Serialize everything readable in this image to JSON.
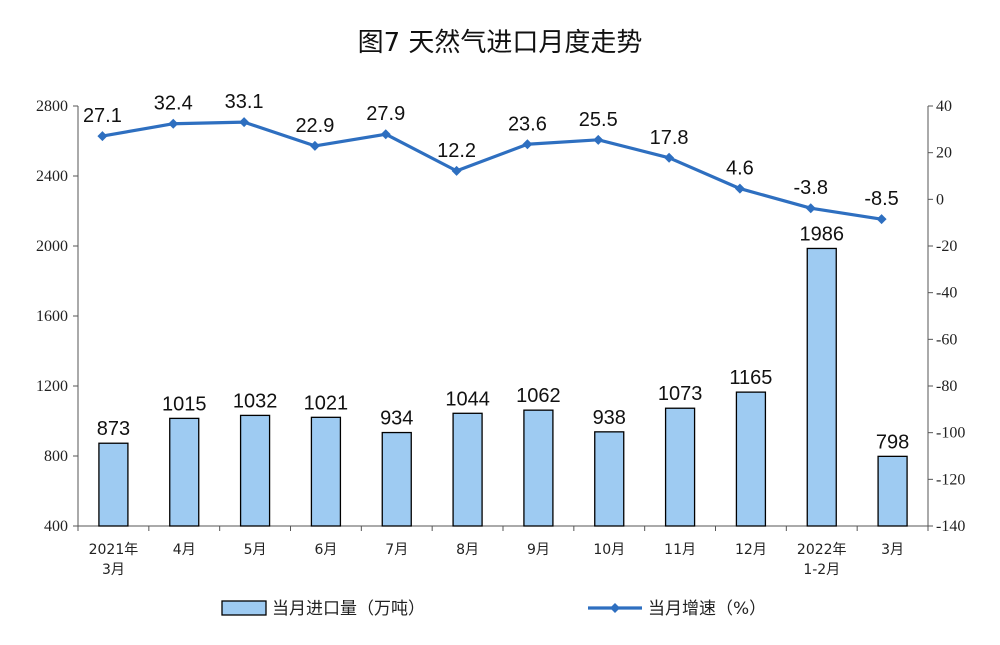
{
  "title": "图7  天然气进口月度走势",
  "chart_data": {
    "type": "bar+line",
    "categories": [
      [
        "2021年",
        "3月"
      ],
      [
        "4月"
      ],
      [
        "5月"
      ],
      [
        "6月"
      ],
      [
        "7月"
      ],
      [
        "8月"
      ],
      [
        "9月"
      ],
      [
        "10月"
      ],
      [
        "11月"
      ],
      [
        "12月"
      ],
      [
        "2022年",
        "1-2月"
      ],
      [
        "3月"
      ]
    ],
    "series": [
      {
        "name": "当月进口量（万吨）",
        "type": "bar",
        "axis": "left",
        "values": [
          873,
          1015,
          1032,
          1021,
          934,
          1044,
          1062,
          938,
          1073,
          1165,
          1986,
          798
        ],
        "labels": [
          "873",
          "1015",
          "1032",
          "1021",
          "934",
          "1044",
          "1062",
          "938",
          "1073",
          "1165",
          "1986",
          "798"
        ]
      },
      {
        "name": "当月增速（%）",
        "type": "line",
        "axis": "right",
        "values": [
          27.1,
          32.4,
          33.1,
          22.9,
          27.9,
          12.2,
          23.6,
          25.5,
          17.8,
          4.6,
          -3.8,
          -8.5
        ],
        "labels": [
          "27.1",
          "32.4",
          "33.1",
          "22.9",
          "27.9",
          "12.2",
          "23.6",
          "25.5",
          "17.8",
          "4.6",
          "-3.8",
          "-8.5"
        ]
      }
    ],
    "y_left": {
      "lim": [
        400,
        2800
      ],
      "ticks": [
        "400",
        "800",
        "1200",
        "1600",
        "2000",
        "2400",
        "2800"
      ]
    },
    "y_right": {
      "lim": [
        -140,
        40
      ],
      "ticks": [
        "-140",
        "-120",
        "-100",
        "-80",
        "-60",
        "-40",
        "-20",
        "0",
        "20",
        "40"
      ]
    },
    "colors": {
      "bar_fill": "#9ecbf2",
      "bar_stroke": "#000000",
      "line": "#2e6fc0"
    },
    "grid": false,
    "legend_position": "bottom"
  }
}
